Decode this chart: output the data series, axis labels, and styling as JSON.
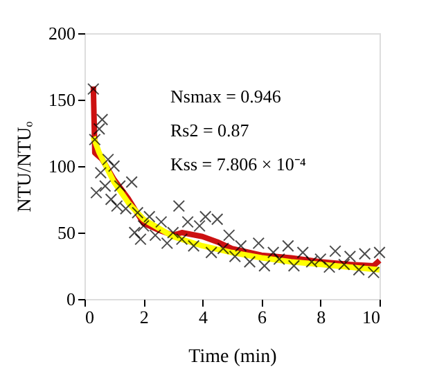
{
  "chart_data": {
    "type": "scatter",
    "xlabel": "Time (min)",
    "ylabel": "NTU/NTUₒ",
    "xlim": [
      0,
      10
    ],
    "xticks": [
      0,
      2,
      4,
      6,
      8,
      10
    ],
    "ylim": [
      0,
      200
    ],
    "yticks": [
      0,
      50,
      100,
      150,
      200
    ],
    "grid": false,
    "annotations": [
      "Nsmax = 0.946",
      "Rs2 = 0.87",
      "Kss = 7.806 × 10⁻⁴"
    ],
    "series": [
      {
        "marker": "cross",
        "color": "#000000",
        "x": [
          0.3,
          0.35,
          0.4,
          0.5,
          0.55,
          0.6,
          0.7,
          0.8,
          0.9,
          1.0,
          1.1,
          1.2,
          1.4,
          1.6,
          1.7,
          1.8,
          1.9,
          2.0,
          2.2,
          2.4,
          2.6,
          2.8,
          3.0,
          3.2,
          3.3,
          3.5,
          3.7,
          3.9,
          4.1,
          4.3,
          4.5,
          4.7,
          4.9,
          5.1,
          5.3,
          5.6,
          5.9,
          6.1,
          6.4,
          6.6,
          6.9,
          7.1,
          7.4,
          7.7,
          8.0,
          8.3,
          8.5,
          8.8,
          9.0,
          9.3,
          9.5,
          9.8,
          10.0
        ],
        "values": [
          158,
          120,
          80,
          128,
          95,
          135,
          85,
          105,
          75,
          100,
          70,
          85,
          68,
          88,
          50,
          65,
          45,
          55,
          62,
          48,
          58,
          42,
          50,
          70,
          45,
          58,
          40,
          55,
          62,
          35,
          60,
          38,
          48,
          32,
          40,
          28,
          42,
          25,
          35,
          30,
          40,
          25,
          35,
          28,
          30,
          24,
          36,
          26,
          32,
          22,
          34,
          20,
          35
        ]
      },
      {
        "type": "line",
        "color": "#cc1111",
        "x": [
          0.3,
          0.35,
          0.6,
          1.0,
          1.5,
          2.0,
          2.5,
          3.0,
          3.3,
          4.0,
          4.5,
          5.0,
          6.0,
          7.0,
          8.0,
          9.0,
          9.8,
          10.0
        ],
        "values": [
          160,
          110,
          105,
          90,
          75,
          57,
          52,
          48,
          50,
          47,
          43,
          38,
          33,
          31,
          28,
          26,
          25,
          29
        ]
      },
      {
        "type": "line",
        "color": "#ffff00",
        "x": [
          0.3,
          0.5,
          1.0,
          1.5,
          2.0,
          3.0,
          4.0,
          5.0,
          6.0,
          7.0,
          8.0,
          9.0,
          10.0
        ],
        "values": [
          122,
          110,
          88,
          72,
          60,
          47,
          40,
          35,
          31,
          28,
          26,
          24,
          22
        ]
      }
    ]
  }
}
